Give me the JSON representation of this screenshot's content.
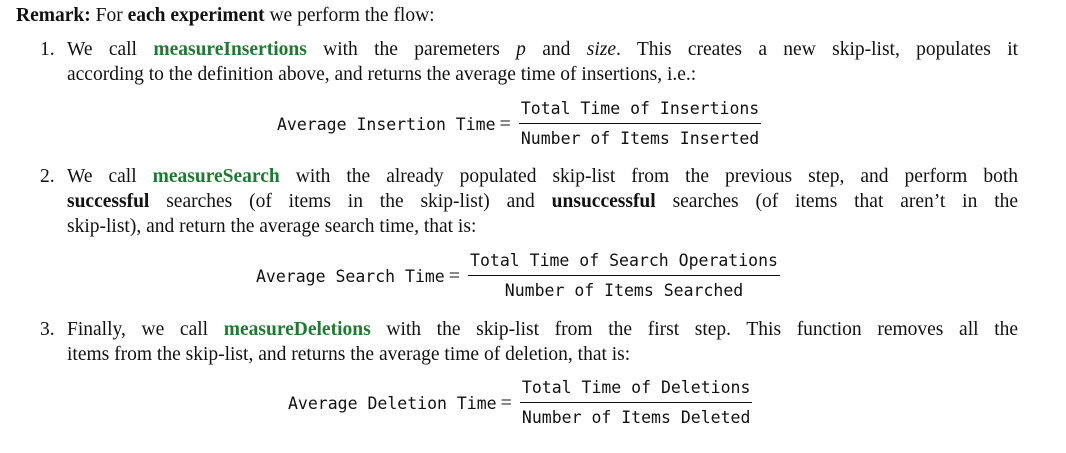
{
  "remark": {
    "label": "Remark:",
    "intro_pre": "For",
    "intro_bold": "each experiment",
    "intro_post": "we perform the flow:"
  },
  "items": [
    {
      "number": "1.",
      "line1_pre": "We call",
      "func": "measureInsertions",
      "line1_mid1": "with the paremeters",
      "param_p": "p",
      "line1_mid2": "and",
      "param_size": "size",
      "line1_post": ". This creates a new skip-list, populates it",
      "line2": "according to the definition above, and returns the average time of insertions, i.e.:",
      "eq_lhs": "Average Insertion Time",
      "eq_num": "Total Time of Insertions",
      "eq_den": "Number of Items Inserted"
    },
    {
      "number": "2.",
      "line1_pre": "We call",
      "func": "measureSearch",
      "line1_post": "with the already populated skip-list from the previous step, and perform both",
      "line2_bold1": "successful",
      "line2_mid": "searches (of items in the skip-list) and",
      "line2_bold2": "unsuccessful",
      "line2_post": "searches (of items that aren’t in the",
      "line3": "skip-list), and return the average search time, that is:",
      "eq_lhs": "Average Search Time",
      "eq_num": "Total Time of Search Operations",
      "eq_den": "Number of Items Searched"
    },
    {
      "number": "3.",
      "line1_pre": "Finally, we call",
      "func": "measureDeletions",
      "line1_post": "with the skip-list from the first step. This function removes all the",
      "line2": "items from the skip-list, and returns the average time of deletion, that is:",
      "eq_lhs": "Average Deletion Time",
      "eq_num": "Total Time of Deletions",
      "eq_den": "Number of Items Deleted"
    }
  ],
  "equals_sign": "="
}
